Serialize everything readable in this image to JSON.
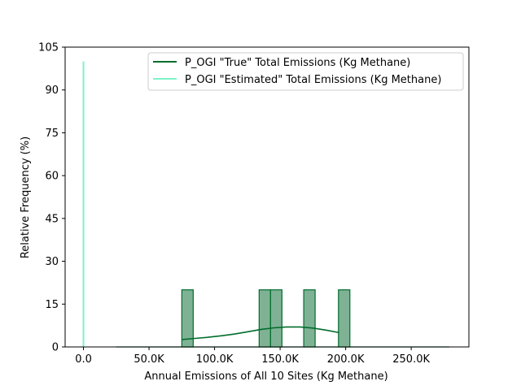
{
  "chart_data": {
    "type": "bar",
    "title": "",
    "xlabel": "Annual Emissions of All 10 Sites (Kg Methane)",
    "ylabel": "Relative Frequency (%)",
    "xlim": [
      -14000,
      294000
    ],
    "ylim": [
      0,
      105
    ],
    "xticks": [
      0,
      50000,
      100000,
      150000,
      200000,
      250000
    ],
    "xtick_labels": [
      "0.0",
      "50.0K",
      "100.0K",
      "150.0K",
      "200.0K",
      "250.0K"
    ],
    "yticks": [
      0,
      15,
      30,
      45,
      60,
      75,
      90,
      105
    ],
    "ytick_labels": [
      "0",
      "15",
      "30",
      "45",
      "60",
      "75",
      "90",
      "105"
    ],
    "legend_position": "top-right",
    "series": [
      {
        "name": "P_OGI \"True\" Total Emissions (Kg Methane)",
        "color": "#006d2c",
        "fill_color": "#7fb295",
        "histogram": {
          "bin_width": 8700,
          "bins": [
            {
              "x0": 75000,
              "x1": 83700,
              "value": 20
            },
            {
              "x0": 134000,
              "x1": 142700,
              "value": 20
            },
            {
              "x0": 142700,
              "x1": 151400,
              "value": 20
            },
            {
              "x0": 168000,
              "x1": 176700,
              "value": 20
            },
            {
              "x0": 194500,
              "x1": 203200,
              "value": 20
            }
          ],
          "baseline_range": [
            25000,
            279000
          ]
        },
        "kde": {
          "x": [
            75000,
            85000,
            95000,
            105000,
            115000,
            125000,
            135000,
            145000,
            155000,
            165000,
            175000,
            185000,
            195000
          ],
          "y": [
            2.6,
            3.0,
            3.4,
            3.9,
            4.5,
            5.3,
            6.1,
            6.7,
            7.0,
            7.0,
            6.6,
            5.9,
            5.0
          ]
        }
      },
      {
        "name": "P_OGI \"Estimated\" Total Emissions (Kg Methane)",
        "color": "#7ef2c8",
        "spike": {
          "x": 0,
          "value": 100
        }
      }
    ]
  }
}
